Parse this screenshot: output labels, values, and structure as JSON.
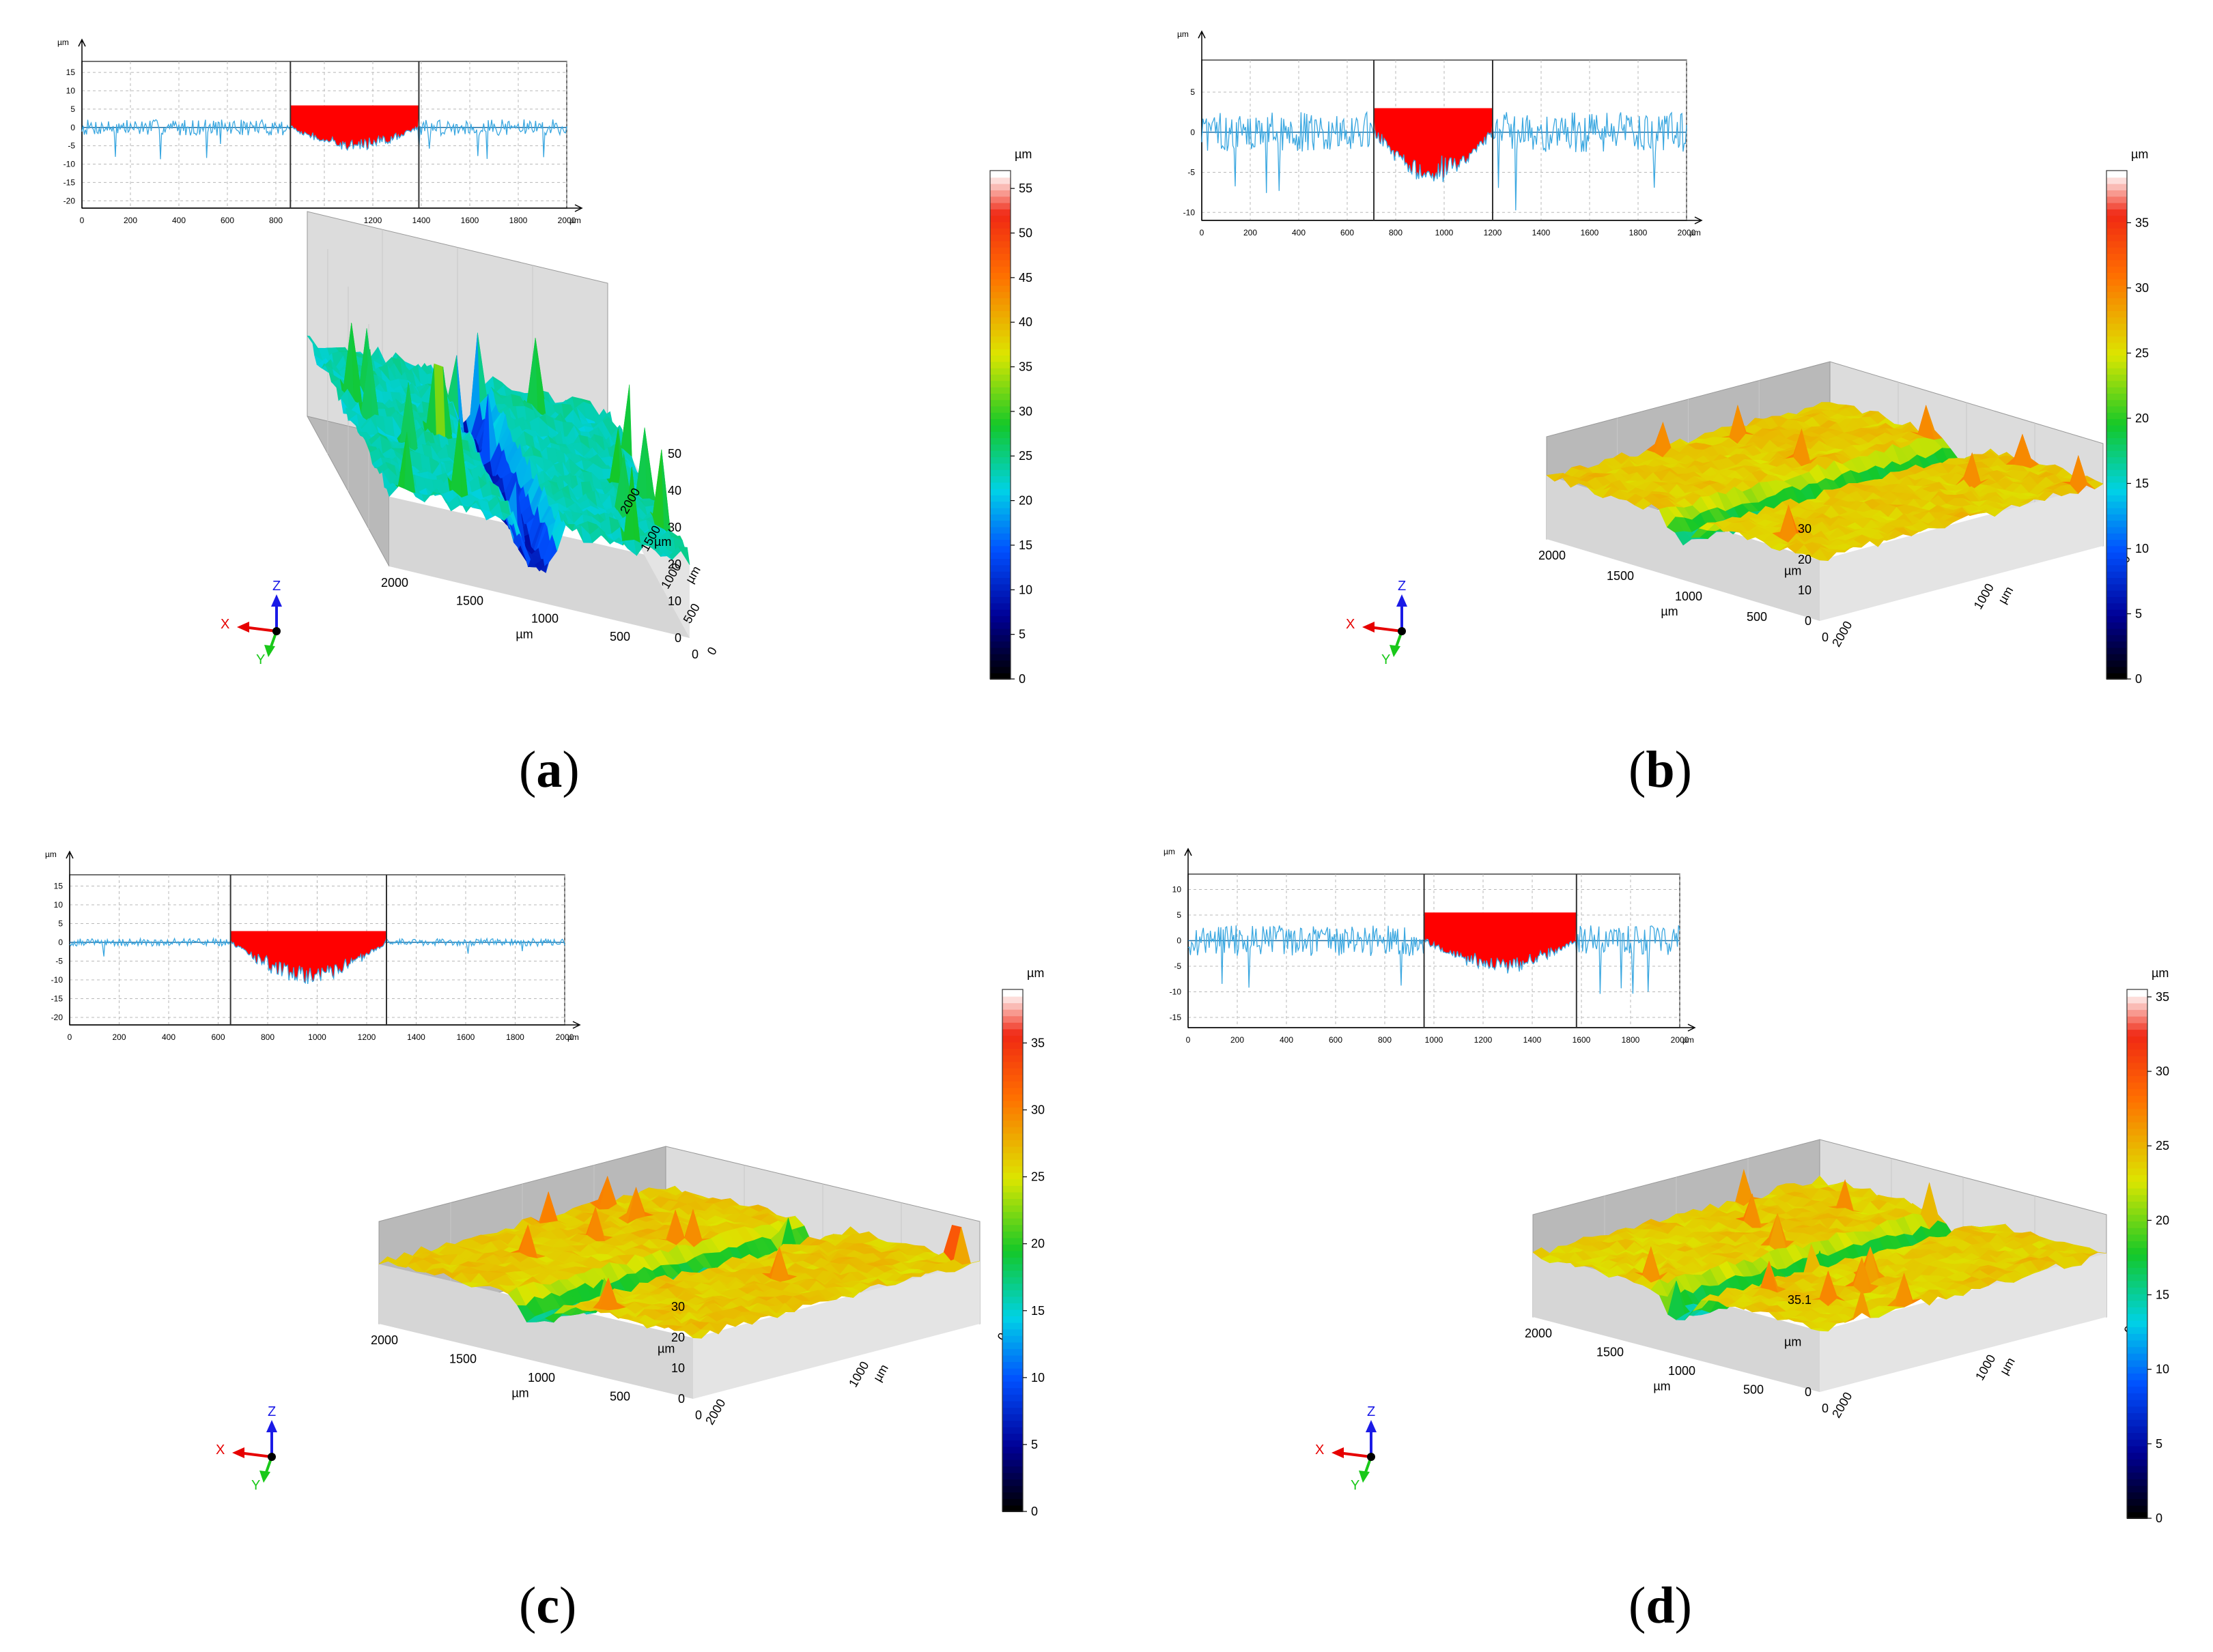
{
  "figure": {
    "colors": {
      "profile_line": "#3aa7e0",
      "profile_fill": "#ff0000",
      "grid": "#b8b8b8",
      "axis": "#000000",
      "frame": "#444444",
      "wall": "#d3d3d3"
    },
    "axis_triad": {
      "x": "X",
      "y": "Y",
      "z": "Z",
      "x_color": "#e60000",
      "y_color": "#19c819",
      "z_color": "#1a1ae6"
    }
  },
  "chart_data": [
    {
      "id": "a",
      "caption": {
        "open": "(",
        "letter": "a",
        "close": ")"
      },
      "profile": {
        "type": "line",
        "ylabel": "µm",
        "xunit": "µm",
        "xlim": [
          0,
          2000
        ],
        "ylim": [
          -22,
          18
        ],
        "xticks": [
          0,
          200,
          400,
          600,
          800,
          1000,
          1200,
          1400,
          1600,
          1800,
          2000
        ],
        "xticklabels": [
          "0",
          "200",
          "400",
          "600",
          "800",
          "1000",
          "1200",
          "1400",
          "1600",
          "1800",
          "2000"
        ],
        "yticks": [
          15,
          10,
          5,
          0,
          -5,
          -10,
          -15,
          -20
        ],
        "yticklabels": [
          "15",
          "10",
          "5",
          "0",
          "-5",
          "-10",
          "-15",
          "-20"
        ],
        "groove_start": 860,
        "groove_end": 1390,
        "fill_level": 6,
        "groove_depth": -5,
        "noise_amplitude": 2.2
      },
      "surface": {
        "type": "3d-surface",
        "zlabel": "µm",
        "xlabel": "µm",
        "ylabel": "µm",
        "zticklabels": [
          "0",
          "10",
          "20",
          "30",
          "40",
          "50"
        ],
        "xticklabels": [
          "2000",
          "1500",
          "1000",
          "500",
          "0"
        ],
        "yticklabels": [
          "2000",
          "1500",
          "1000",
          "500",
          "0"
        ],
        "zmax": 55
      },
      "colorbar": {
        "unit": "µm",
        "min": 0,
        "max": 57,
        "ticks": [
          0,
          5,
          10,
          15,
          20,
          25,
          30,
          35,
          40,
          45,
          50,
          55
        ],
        "ticklabels": [
          "0",
          "5",
          "10",
          "15",
          "20",
          "25",
          "30",
          "35",
          "40",
          "45",
          "50",
          "55"
        ]
      }
    },
    {
      "id": "b",
      "caption": {
        "open": "(",
        "letter": "b",
        "close": ")"
      },
      "profile": {
        "type": "line",
        "ylabel": "µm",
        "xunit": "µm",
        "xlim": [
          0,
          2000
        ],
        "ylim": [
          -11,
          9
        ],
        "xticks": [
          0,
          200,
          400,
          600,
          800,
          1000,
          1200,
          1400,
          1600,
          1800,
          2000
        ],
        "xticklabels": [
          "0",
          "200",
          "400",
          "600",
          "800",
          "1000",
          "1200",
          "1400",
          "1600",
          "1800",
          "2000"
        ],
        "yticks": [
          5,
          0,
          -5,
          -10
        ],
        "yticklabels": [
          "5",
          "0",
          "-5",
          "-10"
        ],
        "groove_start": 710,
        "groove_end": 1200,
        "fill_level": 3,
        "groove_depth": -5,
        "noise_amplitude": 2.5
      },
      "surface": {
        "type": "3d-surface",
        "zlabel": "µm",
        "xlabel": "µm",
        "ylabel": "µm",
        "zticklabels": [
          "0",
          "10",
          "20",
          "30"
        ],
        "xticklabels": [
          "2000",
          "1500",
          "1000",
          "500",
          "0"
        ],
        "yticklabels": [
          "0",
          "1000",
          "2000"
        ],
        "zmax": 39
      },
      "colorbar": {
        "unit": "µm",
        "min": 0,
        "max": 39,
        "ticks": [
          0,
          5,
          10,
          15,
          20,
          25,
          30,
          35
        ],
        "ticklabels": [
          "0",
          "5",
          "10",
          "15",
          "20",
          "25",
          "30",
          "35"
        ]
      }
    },
    {
      "id": "c",
      "caption": {
        "open": "(",
        "letter": "c",
        "close": ")"
      },
      "profile": {
        "type": "line",
        "ylabel": "µm",
        "xunit": "µm",
        "xlim": [
          0,
          2000
        ],
        "ylim": [
          -22,
          18
        ],
        "xticks": [
          0,
          200,
          400,
          600,
          800,
          1000,
          1200,
          1400,
          1600,
          1800,
          2000
        ],
        "xticklabels": [
          "0",
          "200",
          "400",
          "600",
          "800",
          "1000",
          "1200",
          "1400",
          "1600",
          "1800",
          "2000"
        ],
        "yticks": [
          15,
          10,
          5,
          0,
          -5,
          -10,
          -15,
          -20
        ],
        "yticklabels": [
          "15",
          "10",
          "5",
          "0",
          "-5",
          "-10",
          "-15",
          "-20"
        ],
        "groove_start": 650,
        "groove_end": 1280,
        "fill_level": 3,
        "groove_depth": -9,
        "noise_amplitude": 1.0
      },
      "surface": {
        "type": "3d-surface",
        "zlabel": "µm",
        "xlabel": "µm",
        "ylabel": "µm",
        "zticklabels": [
          "0",
          "10",
          "20",
          "30"
        ],
        "xticklabels": [
          "2000",
          "1500",
          "1000",
          "500",
          "0"
        ],
        "yticklabels": [
          "0",
          "1000",
          "2000"
        ],
        "zmax": 39
      },
      "colorbar": {
        "unit": "µm",
        "min": 0,
        "max": 39,
        "ticks": [
          0,
          5,
          10,
          15,
          20,
          25,
          30,
          35
        ],
        "ticklabels": [
          "0",
          "5",
          "10",
          "15",
          "20",
          "25",
          "30",
          "35"
        ]
      }
    },
    {
      "id": "d",
      "caption": {
        "open": "(",
        "letter": "d",
        "close": ")"
      },
      "profile": {
        "type": "line",
        "ylabel": "µm",
        "xunit": "µm",
        "xlim": [
          0,
          2000
        ],
        "ylim": [
          -17,
          13
        ],
        "xticks": [
          0,
          200,
          400,
          600,
          800,
          1000,
          1200,
          1400,
          1600,
          1800,
          2000
        ],
        "xticklabels": [
          "0",
          "200",
          "400",
          "600",
          "800",
          "1000",
          "1200",
          "1400",
          "1600",
          "1800",
          "2000"
        ],
        "yticks": [
          10,
          5,
          0,
          -5,
          -10,
          -15
        ],
        "yticklabels": [
          "10",
          "5",
          "0",
          "-5",
          "-10",
          "-15"
        ],
        "groove_start": 960,
        "groove_end": 1580,
        "fill_level": 5.5,
        "groove_depth": -5,
        "noise_amplitude": 3.0
      },
      "surface": {
        "type": "3d-surface",
        "zlabel": "µm",
        "xlabel": "µm",
        "ylabel": "µm",
        "zticklabels": [
          "0",
          "35.1"
        ],
        "xticklabels": [
          "2000",
          "1500",
          "1000",
          "500",
          "0"
        ],
        "yticklabels": [
          "0",
          "1000",
          "2000"
        ],
        "zmax": 35.1
      },
      "colorbar": {
        "unit": "µm",
        "min": 0,
        "max": 35.5,
        "ticks": [
          0,
          5,
          10,
          15,
          20,
          25,
          30,
          35
        ],
        "ticklabels": [
          "0",
          "5",
          "10",
          "15",
          "20",
          "25",
          "30",
          "35"
        ]
      }
    }
  ]
}
